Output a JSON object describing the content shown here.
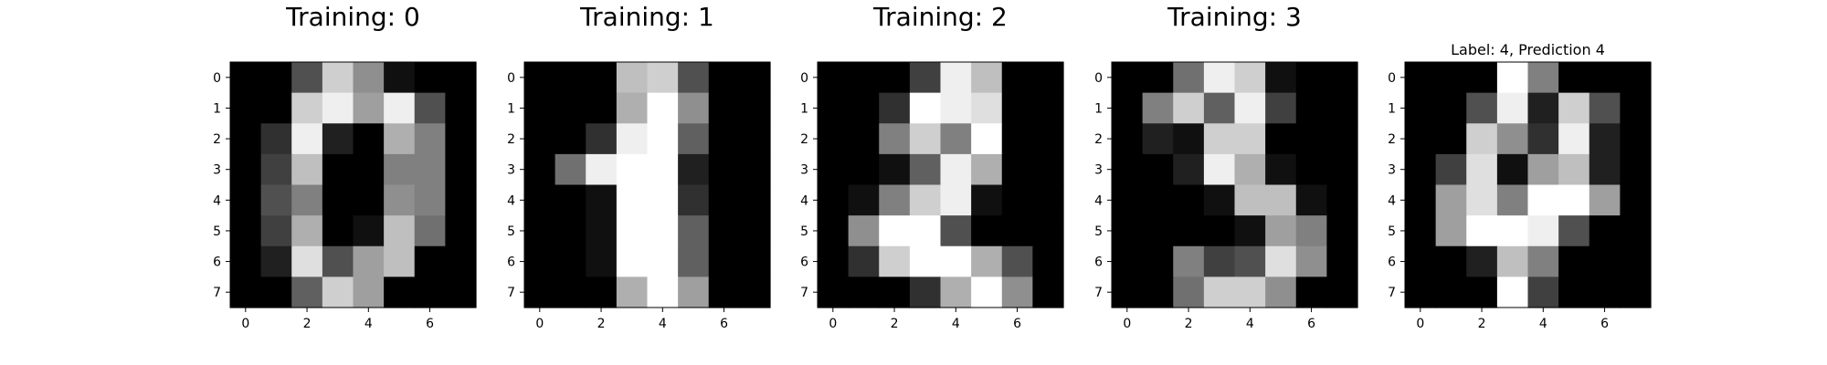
{
  "chart_data": [
    {
      "type": "heatmap",
      "title": "Training: 0",
      "colormap": "gray_r",
      "vmin": 0,
      "vmax": 16,
      "x_ticks": [
        0,
        2,
        4,
        6
      ],
      "y_ticks": [
        0,
        1,
        2,
        3,
        4,
        5,
        6,
        7
      ],
      "grid": false,
      "values": [
        [
          0,
          0,
          5,
          13,
          9,
          1,
          0,
          0
        ],
        [
          0,
          0,
          13,
          15,
          10,
          15,
          5,
          0
        ],
        [
          0,
          3,
          15,
          2,
          0,
          11,
          8,
          0
        ],
        [
          0,
          4,
          12,
          0,
          0,
          8,
          8,
          0
        ],
        [
          0,
          5,
          8,
          0,
          0,
          9,
          8,
          0
        ],
        [
          0,
          4,
          11,
          0,
          1,
          12,
          7,
          0
        ],
        [
          0,
          2,
          14,
          5,
          10,
          12,
          0,
          0
        ],
        [
          0,
          0,
          6,
          13,
          10,
          0,
          0,
          0
        ]
      ]
    },
    {
      "type": "heatmap",
      "title": "Training: 1",
      "colormap": "gray_r",
      "vmin": 0,
      "vmax": 16,
      "x_ticks": [
        0,
        2,
        4,
        6
      ],
      "y_ticks": [
        0,
        1,
        2,
        3,
        4,
        5,
        6,
        7
      ],
      "grid": false,
      "values": [
        [
          0,
          0,
          0,
          12,
          13,
          5,
          0,
          0
        ],
        [
          0,
          0,
          0,
          11,
          16,
          9,
          0,
          0
        ],
        [
          0,
          0,
          3,
          15,
          16,
          6,
          0,
          0
        ],
        [
          0,
          7,
          15,
          16,
          16,
          2,
          0,
          0
        ],
        [
          0,
          0,
          1,
          16,
          16,
          3,
          0,
          0
        ],
        [
          0,
          0,
          1,
          16,
          16,
          6,
          0,
          0
        ],
        [
          0,
          0,
          1,
          16,
          16,
          6,
          0,
          0
        ],
        [
          0,
          0,
          0,
          11,
          16,
          10,
          0,
          0
        ]
      ]
    },
    {
      "type": "heatmap",
      "title": "Training: 2",
      "colormap": "gray_r",
      "vmin": 0,
      "vmax": 16,
      "x_ticks": [
        0,
        2,
        4,
        6
      ],
      "y_ticks": [
        0,
        1,
        2,
        3,
        4,
        5,
        6,
        7
      ],
      "grid": false,
      "values": [
        [
          0,
          0,
          0,
          4,
          15,
          12,
          0,
          0
        ],
        [
          0,
          0,
          3,
          16,
          15,
          14,
          0,
          0
        ],
        [
          0,
          0,
          8,
          13,
          8,
          16,
          0,
          0
        ],
        [
          0,
          0,
          1,
          6,
          15,
          11,
          0,
          0
        ],
        [
          0,
          1,
          8,
          13,
          15,
          1,
          0,
          0
        ],
        [
          0,
          9,
          16,
          16,
          5,
          0,
          0,
          0
        ],
        [
          0,
          3,
          13,
          16,
          16,
          11,
          5,
          0
        ],
        [
          0,
          0,
          0,
          3,
          11,
          16,
          9,
          0
        ]
      ]
    },
    {
      "type": "heatmap",
      "title": "Training: 3",
      "colormap": "gray_r",
      "vmin": 0,
      "vmax": 16,
      "x_ticks": [
        0,
        2,
        4,
        6
      ],
      "y_ticks": [
        0,
        1,
        2,
        3,
        4,
        5,
        6,
        7
      ],
      "grid": false,
      "values": [
        [
          0,
          0,
          7,
          15,
          13,
          1,
          0,
          0
        ],
        [
          0,
          8,
          13,
          6,
          15,
          4,
          0,
          0
        ],
        [
          0,
          2,
          1,
          13,
          13,
          0,
          0,
          0
        ],
        [
          0,
          0,
          2,
          15,
          11,
          1,
          0,
          0
        ],
        [
          0,
          0,
          0,
          1,
          12,
          12,
          1,
          0
        ],
        [
          0,
          0,
          0,
          0,
          1,
          10,
          8,
          0
        ],
        [
          0,
          0,
          8,
          4,
          5,
          14,
          9,
          0
        ],
        [
          0,
          0,
          7,
          13,
          13,
          9,
          0,
          0
        ]
      ]
    },
    {
      "type": "heatmap",
      "title": "Label: 4, Prediction 4",
      "colormap": "gray_r",
      "vmin": 0,
      "vmax": 16,
      "x_ticks": [
        0,
        2,
        4,
        6
      ],
      "y_ticks": [
        0,
        1,
        2,
        3,
        4,
        5,
        6,
        7
      ],
      "grid": false,
      "values": [
        [
          0,
          0,
          0,
          16,
          8,
          0,
          0,
          0
        ],
        [
          0,
          0,
          5,
          15,
          2,
          13,
          5,
          0
        ],
        [
          0,
          0,
          13,
          9,
          3,
          15,
          2,
          0
        ],
        [
          0,
          4,
          14,
          1,
          10,
          12,
          2,
          0
        ],
        [
          0,
          10,
          14,
          8,
          16,
          16,
          10,
          0
        ],
        [
          0,
          10,
          16,
          16,
          15,
          5,
          0,
          0
        ],
        [
          0,
          0,
          2,
          12,
          8,
          0,
          0,
          0
        ],
        [
          0,
          0,
          0,
          16,
          4,
          0,
          0,
          0
        ]
      ]
    }
  ]
}
